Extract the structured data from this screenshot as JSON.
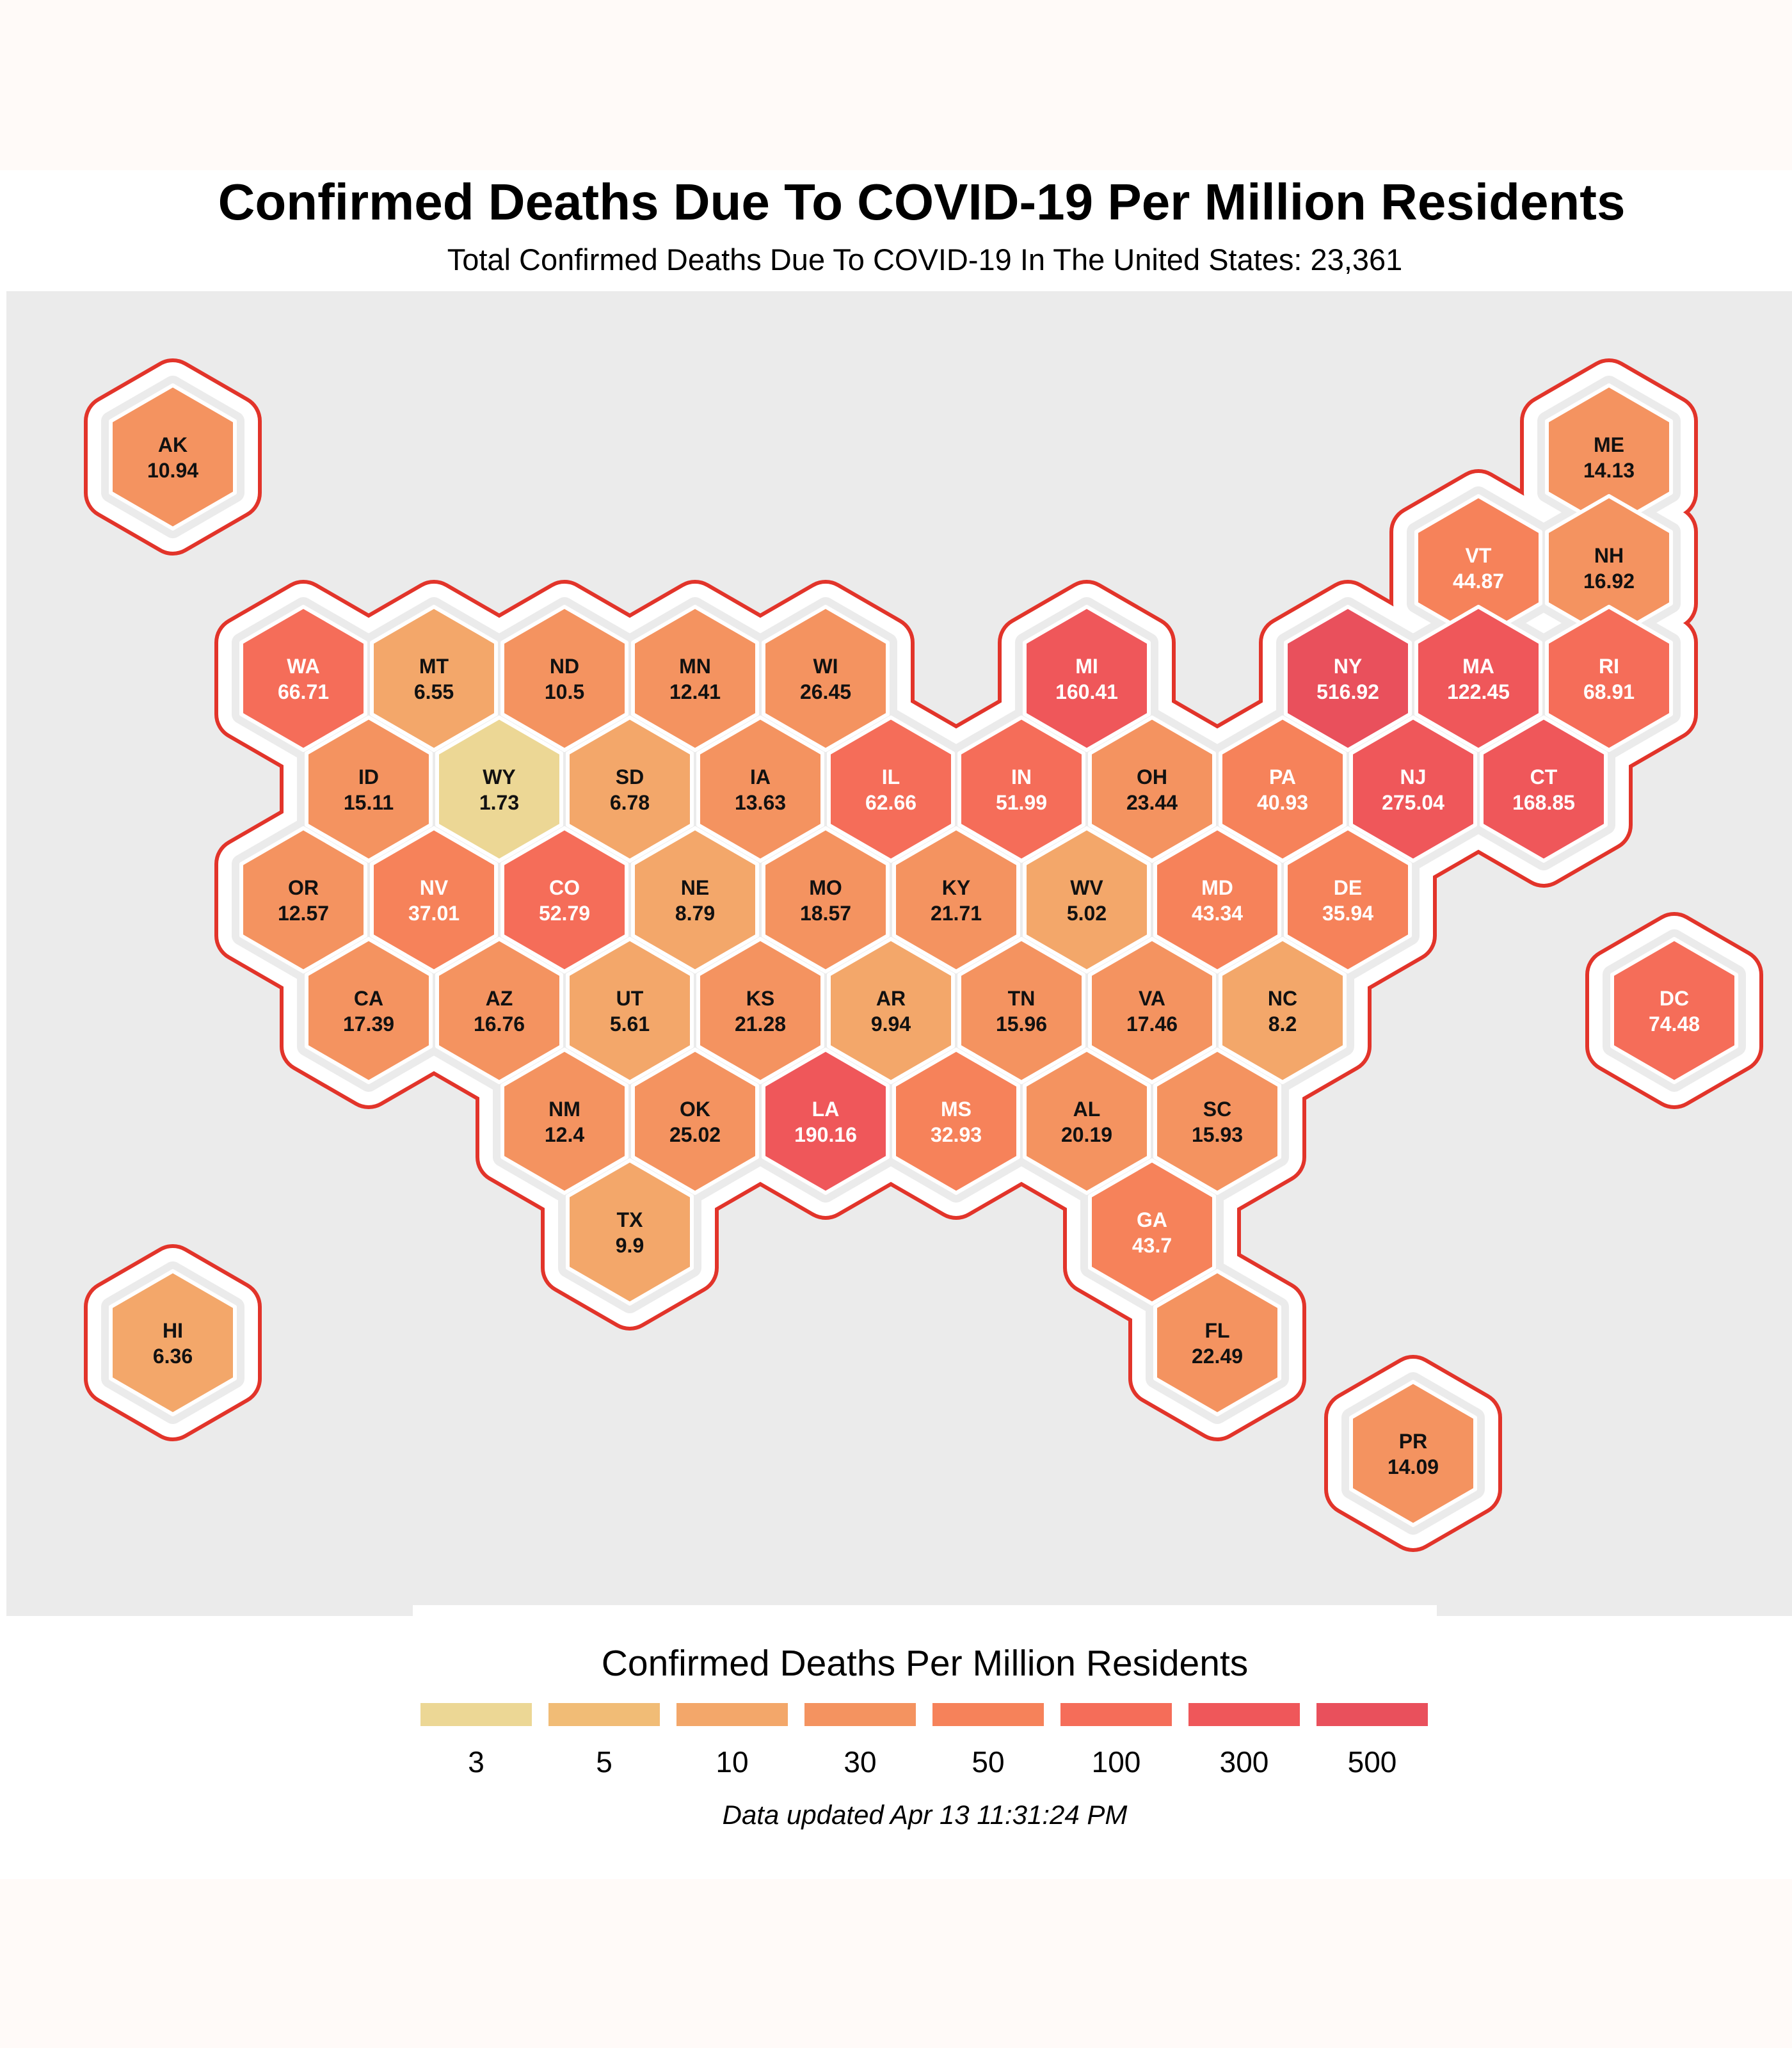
{
  "title": "Confirmed Deaths Due To COVID-19 Per Million Residents",
  "subtitle": "Total Confirmed Deaths Due To COVID-19 In The United States: 23,361",
  "legend": {
    "title": "Confirmed Deaths Per Million Residents",
    "bins": [
      {
        "label": "3",
        "color": "#ecd795"
      },
      {
        "label": "5",
        "color": "#f1bc76"
      },
      {
        "label": "10",
        "color": "#f3a76a"
      },
      {
        "label": "30",
        "color": "#f49360"
      },
      {
        "label": "50",
        "color": "#f6825a"
      },
      {
        "label": "100",
        "color": "#f56d59"
      },
      {
        "label": "300",
        "color": "#ef575a"
      },
      {
        "label": "500",
        "color": "#e9505c"
      }
    ]
  },
  "footnote": "Data updated Apr 13 11:31:24 PM",
  "colors": {
    "panel_bg": "#ebebeb",
    "outline": "#e2342a",
    "tile_border": "#ffffff"
  },
  "chart_data": {
    "type": "hexbin-choropleth",
    "value_label": "Confirmed Deaths Per Million Residents",
    "states": [
      {
        "code": "AK",
        "value": 10.94,
        "col": 0,
        "row": 0
      },
      {
        "code": "ME",
        "value": 14.13,
        "col": 22,
        "row": 0
      },
      {
        "code": "VT",
        "value": 44.87,
        "col": 20,
        "row": 1
      },
      {
        "code": "NH",
        "value": 16.92,
        "col": 22,
        "row": 1
      },
      {
        "code": "WA",
        "value": 66.71,
        "col": 2,
        "row": 2
      },
      {
        "code": "MT",
        "value": 6.55,
        "col": 4,
        "row": 2
      },
      {
        "code": "ND",
        "value": 10.5,
        "col": 6,
        "row": 2
      },
      {
        "code": "MN",
        "value": 12.41,
        "col": 8,
        "row": 2
      },
      {
        "code": "WI",
        "value": 26.45,
        "col": 10,
        "row": 2
      },
      {
        "code": "MI",
        "value": 160.41,
        "col": 14,
        "row": 2
      },
      {
        "code": "NY",
        "value": 516.92,
        "col": 18,
        "row": 2
      },
      {
        "code": "MA",
        "value": 122.45,
        "col": 20,
        "row": 2
      },
      {
        "code": "RI",
        "value": 68.91,
        "col": 22,
        "row": 2
      },
      {
        "code": "ID",
        "value": 15.11,
        "col": 3,
        "row": 3
      },
      {
        "code": "WY",
        "value": 1.73,
        "col": 5,
        "row": 3
      },
      {
        "code": "SD",
        "value": 6.78,
        "col": 7,
        "row": 3
      },
      {
        "code": "IA",
        "value": 13.63,
        "col": 9,
        "row": 3
      },
      {
        "code": "IL",
        "value": 62.66,
        "col": 11,
        "row": 3
      },
      {
        "code": "IN",
        "value": 51.99,
        "col": 13,
        "row": 3
      },
      {
        "code": "OH",
        "value": 23.44,
        "col": 15,
        "row": 3
      },
      {
        "code": "PA",
        "value": 40.93,
        "col": 17,
        "row": 3
      },
      {
        "code": "NJ",
        "value": 275.04,
        "col": 19,
        "row": 3
      },
      {
        "code": "CT",
        "value": 168.85,
        "col": 21,
        "row": 3
      },
      {
        "code": "OR",
        "value": 12.57,
        "col": 2,
        "row": 4
      },
      {
        "code": "NV",
        "value": 37.01,
        "col": 4,
        "row": 4
      },
      {
        "code": "CO",
        "value": 52.79,
        "col": 6,
        "row": 4
      },
      {
        "code": "NE",
        "value": 8.79,
        "col": 8,
        "row": 4
      },
      {
        "code": "MO",
        "value": 18.57,
        "col": 10,
        "row": 4
      },
      {
        "code": "KY",
        "value": 21.71,
        "col": 12,
        "row": 4
      },
      {
        "code": "WV",
        "value": 5.02,
        "col": 14,
        "row": 4
      },
      {
        "code": "MD",
        "value": 43.34,
        "col": 16,
        "row": 4
      },
      {
        "code": "DE",
        "value": 35.94,
        "col": 18,
        "row": 4
      },
      {
        "code": "CA",
        "value": 17.39,
        "col": 3,
        "row": 5
      },
      {
        "code": "AZ",
        "value": 16.76,
        "col": 5,
        "row": 5
      },
      {
        "code": "UT",
        "value": 5.61,
        "col": 7,
        "row": 5
      },
      {
        "code": "KS",
        "value": 21.28,
        "col": 9,
        "row": 5
      },
      {
        "code": "AR",
        "value": 9.94,
        "col": 11,
        "row": 5
      },
      {
        "code": "TN",
        "value": 15.96,
        "col": 13,
        "row": 5
      },
      {
        "code": "VA",
        "value": 17.46,
        "col": 15,
        "row": 5
      },
      {
        "code": "NC",
        "value": 8.2,
        "col": 17,
        "row": 5
      },
      {
        "code": "DC",
        "value": 74.48,
        "col": 23,
        "row": 5
      },
      {
        "code": "NM",
        "value": 12.4,
        "col": 6,
        "row": 6
      },
      {
        "code": "OK",
        "value": 25.02,
        "col": 8,
        "row": 6
      },
      {
        "code": "LA",
        "value": 190.16,
        "col": 10,
        "row": 6
      },
      {
        "code": "MS",
        "value": 32.93,
        "col": 12,
        "row": 6
      },
      {
        "code": "AL",
        "value": 20.19,
        "col": 14,
        "row": 6
      },
      {
        "code": "SC",
        "value": 15.93,
        "col": 16,
        "row": 6
      },
      {
        "code": "TX",
        "value": 9.9,
        "col": 7,
        "row": 7
      },
      {
        "code": "GA",
        "value": 43.7,
        "col": 15,
        "row": 7
      },
      {
        "code": "HI",
        "value": 6.36,
        "col": 0,
        "row": 8
      },
      {
        "code": "FL",
        "value": 22.49,
        "col": 16,
        "row": 8
      },
      {
        "code": "PR",
        "value": 14.09,
        "col": 19,
        "row": 9
      }
    ]
  }
}
